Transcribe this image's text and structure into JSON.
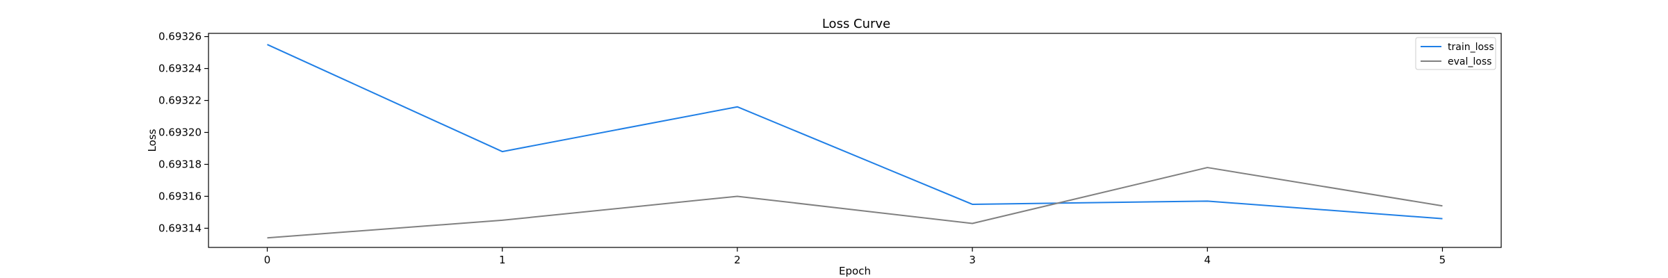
{
  "colors": {
    "train_loss": "#1f7fe6",
    "eval_loss": "#808080"
  },
  "chart_data": {
    "type": "line",
    "title": "Loss Curve",
    "xlabel": "Epoch",
    "ylabel": "Loss",
    "x": [
      0,
      1,
      2,
      3,
      4,
      5
    ],
    "x_ticks": [
      "0",
      "1",
      "2",
      "3",
      "4",
      "5"
    ],
    "xlim": [
      -0.25,
      5.25
    ],
    "ylim": [
      0.693128,
      0.693262
    ],
    "y_ticks": [
      0.69314,
      0.69316,
      0.69318,
      0.6932,
      0.69322,
      0.69324,
      0.69326
    ],
    "y_tick_labels": [
      "0.69314",
      "0.69316",
      "0.69318",
      "0.69320",
      "0.69322",
      "0.69324",
      "0.69326"
    ],
    "grid": false,
    "legend_position": "top-right",
    "series": [
      {
        "name": "train_loss",
        "color_key": "train_loss",
        "values": [
          0.693255,
          0.693188,
          0.693216,
          0.693155,
          0.693157,
          0.693146
        ]
      },
      {
        "name": "eval_loss",
        "color_key": "eval_loss",
        "values": [
          0.693134,
          0.693145,
          0.69316,
          0.693143,
          0.693178,
          0.693154
        ]
      }
    ]
  }
}
